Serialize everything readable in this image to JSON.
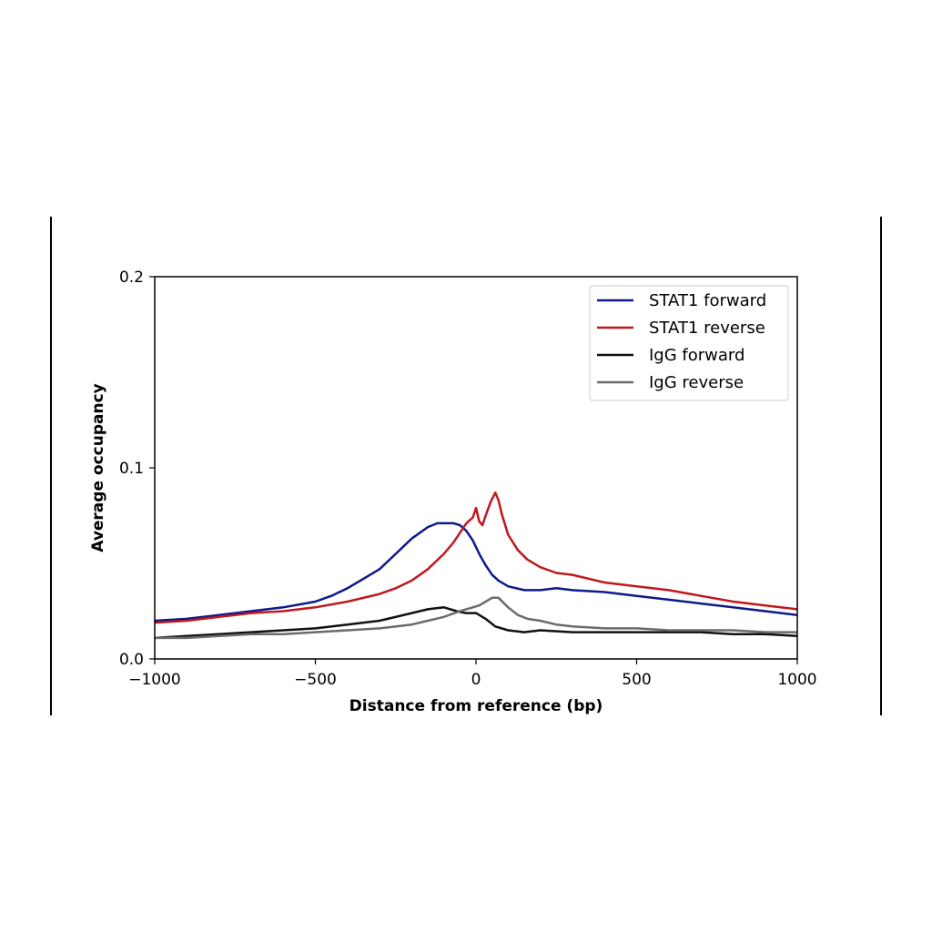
{
  "chart_data": {
    "type": "line",
    "xlabel": "Distance from reference (bp)",
    "ylabel": "Average occupancy",
    "xlim": [
      -1000,
      1000
    ],
    "ylim": [
      0,
      0.2
    ],
    "xticks": [
      -1000,
      -500,
      0,
      500,
      1000
    ],
    "xtick_labels": [
      "−1000",
      "−500",
      "0",
      "500",
      "1000"
    ],
    "yticks": [
      0,
      0.1,
      0.2
    ],
    "ytick_labels": [
      "0.0",
      "0.1",
      "0.2"
    ],
    "grid": false,
    "legend_position": "top-right",
    "series": [
      {
        "name": "STAT1 forward",
        "color": "#0d1a8a",
        "points": [
          [
            -1000,
            0.02
          ],
          [
            -900,
            0.021
          ],
          [
            -800,
            0.023
          ],
          [
            -700,
            0.025
          ],
          [
            -600,
            0.027
          ],
          [
            -500,
            0.03
          ],
          [
            -450,
            0.033
          ],
          [
            -400,
            0.037
          ],
          [
            -350,
            0.042
          ],
          [
            -300,
            0.047
          ],
          [
            -250,
            0.055
          ],
          [
            -200,
            0.063
          ],
          [
            -150,
            0.069
          ],
          [
            -120,
            0.071
          ],
          [
            -100,
            0.071
          ],
          [
            -70,
            0.071
          ],
          [
            -50,
            0.07
          ],
          [
            -30,
            0.067
          ],
          [
            -10,
            0.062
          ],
          [
            10,
            0.055
          ],
          [
            30,
            0.049
          ],
          [
            50,
            0.044
          ],
          [
            70,
            0.041
          ],
          [
            100,
            0.038
          ],
          [
            150,
            0.036
          ],
          [
            200,
            0.036
          ],
          [
            250,
            0.037
          ],
          [
            300,
            0.036
          ],
          [
            400,
            0.035
          ],
          [
            500,
            0.033
          ],
          [
            600,
            0.031
          ],
          [
            700,
            0.029
          ],
          [
            800,
            0.027
          ],
          [
            900,
            0.025
          ],
          [
            1000,
            0.023
          ]
        ]
      },
      {
        "name": "STAT1 reverse",
        "color": "#c0181c",
        "points": [
          [
            -1000,
            0.019
          ],
          [
            -900,
            0.02
          ],
          [
            -800,
            0.022
          ],
          [
            -700,
            0.024
          ],
          [
            -600,
            0.025
          ],
          [
            -500,
            0.027
          ],
          [
            -400,
            0.03
          ],
          [
            -300,
            0.034
          ],
          [
            -250,
            0.037
          ],
          [
            -200,
            0.041
          ],
          [
            -150,
            0.047
          ],
          [
            -100,
            0.055
          ],
          [
            -70,
            0.061
          ],
          [
            -50,
            0.066
          ],
          [
            -30,
            0.071
          ],
          [
            -10,
            0.074
          ],
          [
            0,
            0.079
          ],
          [
            10,
            0.072
          ],
          [
            20,
            0.07
          ],
          [
            30,
            0.075
          ],
          [
            45,
            0.082
          ],
          [
            60,
            0.087
          ],
          [
            70,
            0.083
          ],
          [
            80,
            0.076
          ],
          [
            100,
            0.065
          ],
          [
            130,
            0.057
          ],
          [
            160,
            0.052
          ],
          [
            200,
            0.048
          ],
          [
            250,
            0.045
          ],
          [
            300,
            0.044
          ],
          [
            400,
            0.04
          ],
          [
            500,
            0.038
          ],
          [
            600,
            0.036
          ],
          [
            700,
            0.033
          ],
          [
            800,
            0.03
          ],
          [
            900,
            0.028
          ],
          [
            1000,
            0.026
          ]
        ]
      },
      {
        "name": "IgG forward",
        "color": "#111111",
        "points": [
          [
            -1000,
            0.011
          ],
          [
            -900,
            0.012
          ],
          [
            -800,
            0.013
          ],
          [
            -700,
            0.014
          ],
          [
            -600,
            0.015
          ],
          [
            -500,
            0.016
          ],
          [
            -400,
            0.018
          ],
          [
            -300,
            0.02
          ],
          [
            -200,
            0.024
          ],
          [
            -150,
            0.026
          ],
          [
            -100,
            0.027
          ],
          [
            -60,
            0.025
          ],
          [
            -30,
            0.024
          ],
          [
            0,
            0.024
          ],
          [
            30,
            0.021
          ],
          [
            60,
            0.017
          ],
          [
            100,
            0.015
          ],
          [
            150,
            0.014
          ],
          [
            200,
            0.015
          ],
          [
            300,
            0.014
          ],
          [
            400,
            0.014
          ],
          [
            500,
            0.014
          ],
          [
            600,
            0.014
          ],
          [
            700,
            0.014
          ],
          [
            800,
            0.013
          ],
          [
            900,
            0.013
          ],
          [
            1000,
            0.012
          ]
        ]
      },
      {
        "name": "IgG reverse",
        "color": "#6b6b6b",
        "points": [
          [
            -1000,
            0.011
          ],
          [
            -900,
            0.011
          ],
          [
            -800,
            0.012
          ],
          [
            -700,
            0.013
          ],
          [
            -600,
            0.013
          ],
          [
            -500,
            0.014
          ],
          [
            -400,
            0.015
          ],
          [
            -300,
            0.016
          ],
          [
            -200,
            0.018
          ],
          [
            -150,
            0.02
          ],
          [
            -100,
            0.022
          ],
          [
            -50,
            0.025
          ],
          [
            -10,
            0.027
          ],
          [
            10,
            0.028
          ],
          [
            30,
            0.03
          ],
          [
            50,
            0.032
          ],
          [
            70,
            0.032
          ],
          [
            100,
            0.027
          ],
          [
            130,
            0.023
          ],
          [
            160,
            0.021
          ],
          [
            200,
            0.02
          ],
          [
            250,
            0.018
          ],
          [
            300,
            0.017
          ],
          [
            400,
            0.016
          ],
          [
            500,
            0.016
          ],
          [
            600,
            0.015
          ],
          [
            700,
            0.015
          ],
          [
            800,
            0.015
          ],
          [
            900,
            0.014
          ],
          [
            1000,
            0.014
          ]
        ]
      }
    ]
  }
}
